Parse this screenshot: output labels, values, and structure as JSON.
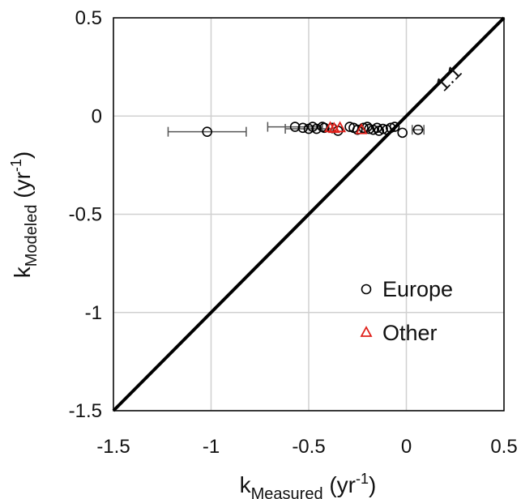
{
  "chart_data": {
    "type": "scatter",
    "xlabel": {
      "base": "k",
      "sub": "Measured",
      "unit_open": " (yr",
      "unit_sup": "-1",
      "unit_close": ")"
    },
    "ylabel": {
      "base": "k",
      "sub": "Modeled",
      "unit_open": " (yr",
      "unit_sup": "-1",
      "unit_close": ")"
    },
    "xlim": [
      -1.5,
      0.5
    ],
    "ylim": [
      -1.5,
      0.5
    ],
    "x_ticks": [
      -1.5,
      -1,
      -0.5,
      0,
      0.5
    ],
    "y_ticks": [
      -1.5,
      -1,
      -0.5,
      0,
      0.5
    ],
    "x_tick_labels": [
      "-1.5",
      "-1",
      "-0.5",
      "0",
      "0.5"
    ],
    "y_tick_labels": [
      "-1.5",
      "-1",
      "-0.5",
      "0",
      "0.5"
    ],
    "grid": true,
    "legend_position": "bottom-right",
    "reference_line": {
      "label": "1:1",
      "from": [
        -1.5,
        -1.5
      ],
      "to": [
        0.5,
        0.5
      ]
    },
    "series": [
      {
        "name": "Europe",
        "marker": "circle",
        "color": "#000000",
        "points": [
          {
            "x": -1.02,
            "y": -0.08,
            "xerr": 0.2
          },
          {
            "x": -0.57,
            "y": -0.055,
            "xerr": 0.14
          },
          {
            "x": -0.53,
            "y": -0.06
          },
          {
            "x": -0.5,
            "y": -0.065,
            "xerr": 0.12
          },
          {
            "x": -0.48,
            "y": -0.055
          },
          {
            "x": -0.46,
            "y": -0.065
          },
          {
            "x": -0.43,
            "y": -0.055
          },
          {
            "x": -0.42,
            "y": -0.06
          },
          {
            "x": -0.38,
            "y": -0.06
          },
          {
            "x": -0.35,
            "y": -0.075
          },
          {
            "x": -0.29,
            "y": -0.055
          },
          {
            "x": -0.27,
            "y": -0.06
          },
          {
            "x": -0.25,
            "y": -0.07
          },
          {
            "x": -0.22,
            "y": -0.06
          },
          {
            "x": -0.2,
            "y": -0.055
          },
          {
            "x": -0.19,
            "y": -0.065
          },
          {
            "x": -0.17,
            "y": -0.07
          },
          {
            "x": -0.15,
            "y": -0.06
          },
          {
            "x": -0.14,
            "y": -0.075
          },
          {
            "x": -0.12,
            "y": -0.065
          },
          {
            "x": -0.1,
            "y": -0.07
          },
          {
            "x": -0.08,
            "y": -0.06
          },
          {
            "x": -0.06,
            "y": -0.055
          },
          {
            "x": -0.02,
            "y": -0.085
          },
          {
            "x": 0.06,
            "y": -0.07,
            "xerr": 0.03
          }
        ]
      },
      {
        "name": "Other",
        "marker": "triangle",
        "color": "#e0201a",
        "points": [
          {
            "x": -0.39,
            "y": -0.058
          },
          {
            "x": -0.37,
            "y": -0.062
          },
          {
            "x": -0.34,
            "y": -0.058
          },
          {
            "x": -0.23,
            "y": -0.068
          }
        ]
      }
    ]
  }
}
